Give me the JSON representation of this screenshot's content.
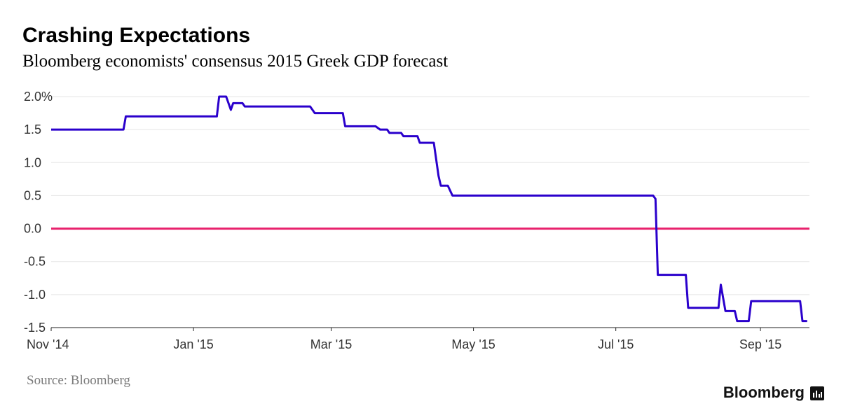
{
  "title": "Crashing Expectations",
  "subtitle": "Bloomberg economists' consensus 2015 Greek GDP forecast",
  "source": "Source: Bloomberg",
  "brand": "Bloomberg",
  "colors": {
    "series": "#2a00cc",
    "zero_line": "#e8206c",
    "grid": "#e5e5e5"
  },
  "chart_data": {
    "type": "line",
    "title": "Crashing Expectations",
    "subtitle": "Bloomberg economists' consensus 2015 Greek GDP forecast",
    "xlabel": "",
    "ylabel": "",
    "ylim": [
      -1.5,
      2.0
    ],
    "xlim": [
      "2014-11-01",
      "2015-09-22"
    ],
    "grid": true,
    "y_ticks": [
      {
        "value": 2.0,
        "label": "2.0%"
      },
      {
        "value": 1.5,
        "label": "1.5"
      },
      {
        "value": 1.0,
        "label": "1.0"
      },
      {
        "value": 0.5,
        "label": "0.5"
      },
      {
        "value": 0.0,
        "label": "0.0"
      },
      {
        "value": -0.5,
        "label": "-0.5"
      },
      {
        "value": -1.0,
        "label": "-1.0"
      },
      {
        "value": -1.5,
        "label": "-1.5"
      }
    ],
    "x_ticks": [
      {
        "date": "2014-11-01",
        "label": "Nov '14"
      },
      {
        "date": "2015-01-01",
        "label": "Jan '15"
      },
      {
        "date": "2015-03-01",
        "label": "Mar '15"
      },
      {
        "date": "2015-05-01",
        "label": "May '15"
      },
      {
        "date": "2015-07-01",
        "label": "Jul '15"
      },
      {
        "date": "2015-09-01",
        "label": "Sep '15"
      }
    ],
    "reference_lines": [
      {
        "y": 0.0,
        "name": "zero"
      }
    ],
    "series": [
      {
        "name": "2015 Greek GDP forecast",
        "points": [
          [
            "2014-11-01",
            1.5
          ],
          [
            "2014-12-02",
            1.5
          ],
          [
            "2014-12-03",
            1.7
          ],
          [
            "2015-01-11",
            1.7
          ],
          [
            "2015-01-12",
            2.0
          ],
          [
            "2015-01-15",
            2.0
          ],
          [
            "2015-01-17",
            1.8
          ],
          [
            "2015-01-18",
            1.9
          ],
          [
            "2015-01-22",
            1.9
          ],
          [
            "2015-01-23",
            1.85
          ],
          [
            "2015-02-20",
            1.85
          ],
          [
            "2015-02-22",
            1.75
          ],
          [
            "2015-03-06",
            1.75
          ],
          [
            "2015-03-07",
            1.55
          ],
          [
            "2015-03-20",
            1.55
          ],
          [
            "2015-03-22",
            1.5
          ],
          [
            "2015-03-25",
            1.5
          ],
          [
            "2015-03-26",
            1.45
          ],
          [
            "2015-03-31",
            1.45
          ],
          [
            "2015-04-01",
            1.4
          ],
          [
            "2015-04-07",
            1.4
          ],
          [
            "2015-04-08",
            1.3
          ],
          [
            "2015-04-14",
            1.3
          ],
          [
            "2015-04-16",
            0.8
          ],
          [
            "2015-04-17",
            0.65
          ],
          [
            "2015-04-20",
            0.65
          ],
          [
            "2015-04-22",
            0.5
          ],
          [
            "2015-07-17",
            0.5
          ],
          [
            "2015-07-18",
            0.45
          ],
          [
            "2015-07-19",
            -0.7
          ],
          [
            "2015-07-31",
            -0.7
          ],
          [
            "2015-08-01",
            -1.2
          ],
          [
            "2015-08-14",
            -1.2
          ],
          [
            "2015-08-15",
            -0.85
          ],
          [
            "2015-08-17",
            -1.25
          ],
          [
            "2015-08-21",
            -1.25
          ],
          [
            "2015-08-22",
            -1.4
          ],
          [
            "2015-08-27",
            -1.4
          ],
          [
            "2015-08-28",
            -1.1
          ],
          [
            "2015-09-18",
            -1.1
          ],
          [
            "2015-09-19",
            -1.4
          ],
          [
            "2015-09-21",
            -1.4
          ]
        ]
      }
    ]
  }
}
